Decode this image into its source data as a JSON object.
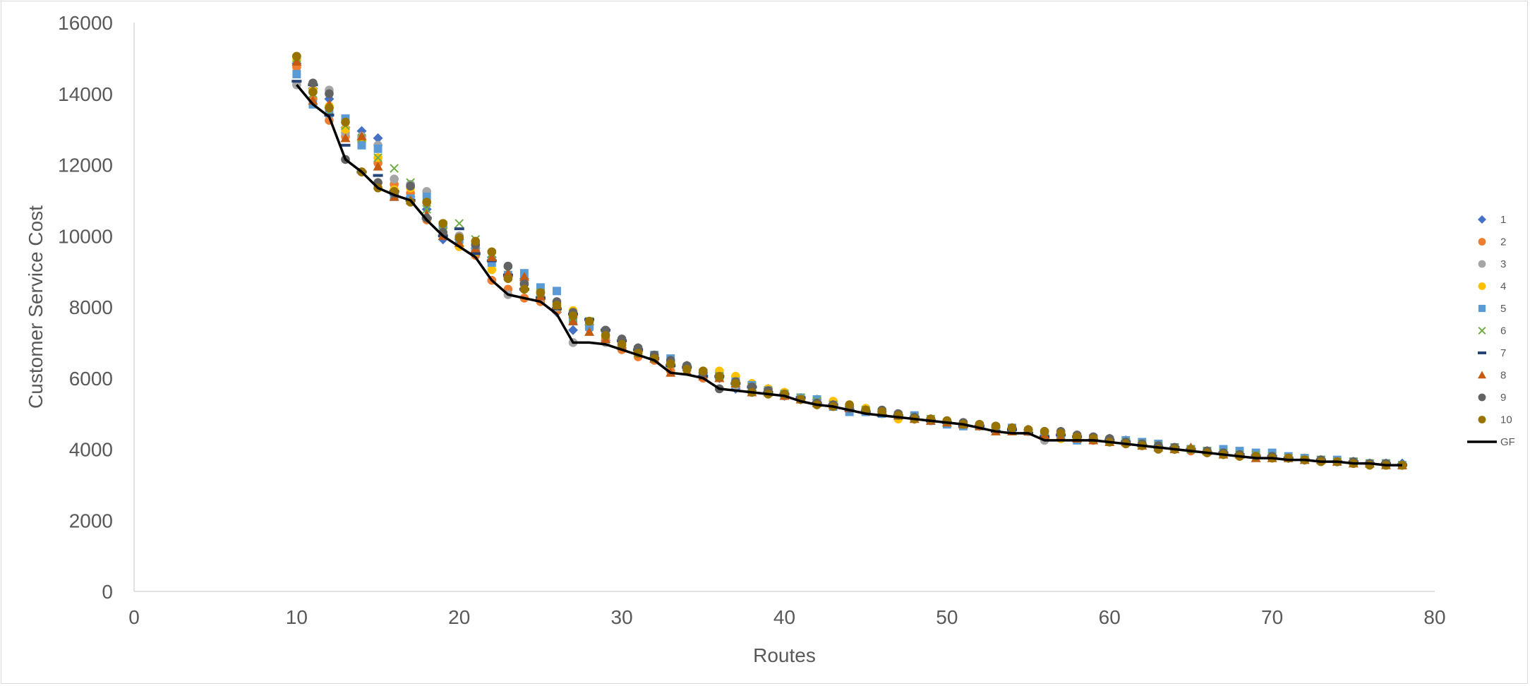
{
  "chart_data": {
    "type": "scatter",
    "title": "",
    "xlabel": "Routes",
    "ylabel": "Customer Service Cost",
    "xlim": [
      0,
      80
    ],
    "ylim": [
      0,
      16000
    ],
    "x_ticks": [
      0,
      10,
      20,
      30,
      40,
      50,
      60,
      70,
      80
    ],
    "y_ticks": [
      0,
      2000,
      4000,
      6000,
      8000,
      10000,
      12000,
      14000,
      16000
    ],
    "grid": false,
    "legend_position": "right",
    "x": [
      10,
      11,
      12,
      13,
      14,
      15,
      16,
      17,
      18,
      19,
      20,
      21,
      22,
      23,
      24,
      25,
      26,
      27,
      28,
      29,
      30,
      31,
      32,
      33,
      34,
      35,
      36,
      37,
      38,
      39,
      40,
      41,
      42,
      43,
      44,
      45,
      46,
      47,
      48,
      49,
      50,
      51,
      52,
      53,
      54,
      55,
      56,
      57,
      58,
      59,
      60,
      61,
      62,
      63,
      64,
      65,
      66,
      67,
      68,
      69,
      70,
      71,
      72,
      73,
      74,
      75,
      76,
      77,
      78
    ],
    "series": [
      {
        "name": "1",
        "marker": "diamond",
        "color": "#4472C4",
        "values": [
          14850,
          14150,
          13850,
          13050,
          12950,
          12750,
          11150,
          11100,
          10750,
          9900,
          9900,
          9650,
          9400,
          8850,
          8800,
          8300,
          7850,
          7350,
          7500,
          7050,
          6850,
          6750,
          6600,
          6400,
          6350,
          6150,
          6000,
          5700,
          5650,
          5700,
          5500,
          5400,
          5400,
          5250,
          5200,
          5100,
          5050,
          4950,
          4850,
          4850,
          4750,
          4700,
          4650,
          4600,
          4600,
          4550,
          4400,
          4400,
          4350,
          4300,
          4300,
          4250,
          4150,
          4100,
          4000,
          4000,
          3950,
          3900,
          3850,
          3850,
          3800,
          3750,
          3700,
          3700,
          3650,
          3650,
          3600,
          3600,
          3600
        ]
      },
      {
        "name": "2",
        "marker": "circle",
        "color": "#ED7D31",
        "values": [
          14750,
          13850,
          13250,
          12800,
          12700,
          12050,
          11450,
          11200,
          10450,
          10050,
          9700,
          9450,
          8750,
          8500,
          8250,
          8150,
          7900,
          7700,
          7500,
          7100,
          6800,
          6600,
          6500,
          6200,
          6300,
          6000,
          6100,
          5850,
          5800,
          5700,
          5600,
          5450,
          5350,
          5250,
          5150,
          5100,
          5050,
          4900,
          4850,
          4800,
          4750,
          4700,
          4650,
          4600,
          4550,
          4500,
          4400,
          4300,
          4300,
          4250,
          4250,
          4200,
          4100,
          4050,
          4000,
          3950,
          3900,
          3850,
          3800,
          3800,
          3750,
          3750,
          3750,
          3700,
          3650,
          3600,
          3600,
          3550,
          3550
        ]
      },
      {
        "name": "3",
        "marker": "circle",
        "color": "#A5A5A5",
        "values": [
          14250,
          14050,
          14100,
          12900,
          12800,
          12550,
          11600,
          11450,
          11250,
          10250,
          10000,
          9600,
          9300,
          8350,
          8700,
          8250,
          8000,
          7000,
          7400,
          7000,
          7000,
          6750,
          6550,
          6450,
          6300,
          6100,
          5700,
          5800,
          5750,
          5650,
          5500,
          5400,
          5400,
          5300,
          5200,
          5100,
          5000,
          4950,
          4900,
          4850,
          4800,
          4750,
          4700,
          4650,
          4550,
          4500,
          4250,
          4400,
          4300,
          4300,
          4250,
          4200,
          4150,
          4100,
          4050,
          4000,
          3950,
          3900,
          3850,
          3800,
          3800,
          3750,
          3700,
          3700,
          3650,
          3600,
          3600,
          3550,
          3550
        ]
      },
      {
        "name": "4",
        "marker": "circle",
        "color": "#FFC000",
        "values": [
          14950,
          14100,
          13650,
          13000,
          12650,
          12200,
          11300,
          11350,
          10950,
          10350,
          9700,
          9550,
          9050,
          8900,
          8650,
          8450,
          8100,
          7900,
          7600,
          7200,
          6900,
          6750,
          6600,
          6450,
          6350,
          6200,
          6200,
          6050,
          5850,
          5700,
          5600,
          5450,
          5400,
          5350,
          5250,
          5150,
          5000,
          4850,
          4850,
          4850,
          4750,
          4700,
          4650,
          4600,
          4550,
          4550,
          4400,
          4300,
          4300,
          4300,
          4250,
          4200,
          4150,
          4100,
          4050,
          4000,
          3950,
          3900,
          3850,
          3850,
          3800,
          3750,
          3750,
          3700,
          3650,
          3600,
          3600,
          3550,
          3550
        ]
      },
      {
        "name": "5",
        "marker": "square",
        "color": "#5B9BD5",
        "values": [
          14550,
          13700,
          13450,
          13300,
          12550,
          12450,
          11100,
          11050,
          11100,
          10300,
          9900,
          9700,
          9250,
          8900,
          8950,
          8550,
          8450,
          7600,
          7450,
          7300,
          7000,
          6800,
          6650,
          6550,
          6300,
          6150,
          6050,
          5900,
          5800,
          5650,
          5550,
          5450,
          5400,
          5200,
          5050,
          5050,
          5000,
          4950,
          4950,
          4800,
          4700,
          4650,
          4650,
          4600,
          4600,
          4500,
          4400,
          4350,
          4250,
          4300,
          4250,
          4250,
          4200,
          4150,
          4050,
          4000,
          3950,
          4000,
          3950,
          3900,
          3900,
          3800,
          3750,
          3700,
          3700,
          3650,
          3600,
          3600,
          3550
        ]
      },
      {
        "name": "6",
        "marker": "x",
        "color": "#70AD47",
        "values": [
          15000,
          14000,
          13500,
          13100,
          12750,
          12200,
          11900,
          11500,
          10750,
          10300,
          10350,
          9900,
          9500,
          9000,
          8700,
          8400,
          8000,
          7700,
          7600,
          7250,
          6950,
          6700,
          6550,
          6400,
          6300,
          6150,
          6050,
          5850,
          5750,
          5650,
          5550,
          5450,
          5350,
          5250,
          5150,
          5100,
          5050,
          4950,
          4900,
          4850,
          4750,
          4700,
          4650,
          4600,
          4550,
          4500,
          4450,
          4400,
          4350,
          4300,
          4250,
          4200,
          4150,
          4100,
          4050,
          4000,
          3950,
          3900,
          3850,
          3850,
          3800,
          3750,
          3700,
          3700,
          3650,
          3650,
          3600,
          3600,
          3550
        ]
      },
      {
        "name": "7",
        "marker": "dash",
        "color": "#264478",
        "values": [
          14350,
          14250,
          13400,
          12550,
          11800,
          11700,
          11250,
          11000,
          10500,
          10000,
          10200,
          9500,
          9300,
          8900,
          8500,
          8250,
          7950,
          7800,
          7650,
          7350,
          7050,
          6800,
          6550,
          6350,
          6300,
          6050,
          6050,
          5850,
          5750,
          5600,
          5550,
          5450,
          5300,
          5250,
          5100,
          5050,
          4950,
          4950,
          4900,
          4800,
          4750,
          4650,
          4650,
          4500,
          4550,
          4450,
          4350,
          4400,
          4350,
          4250,
          4250,
          4200,
          4100,
          4050,
          4050,
          4000,
          3900,
          3900,
          3850,
          3800,
          3800,
          3750,
          3700,
          3700,
          3650,
          3650,
          3600,
          3600,
          3550
        ]
      },
      {
        "name": "8",
        "marker": "triangle",
        "color": "#C55A11",
        "values": [
          14900,
          13800,
          13700,
          12750,
          12800,
          11950,
          11100,
          11000,
          10600,
          10000,
          9800,
          9650,
          9400,
          8950,
          8850,
          8300,
          8050,
          7600,
          7300,
          7100,
          6900,
          6850,
          6550,
          6150,
          6200,
          6050,
          6000,
          5850,
          5600,
          5600,
          5500,
          5400,
          5300,
          5250,
          5150,
          5100,
          5050,
          4950,
          4850,
          4800,
          4750,
          4700,
          4650,
          4500,
          4500,
          4500,
          4400,
          4350,
          4300,
          4250,
          4200,
          4200,
          4100,
          4050,
          4000,
          4050,
          3950,
          3850,
          3850,
          3750,
          3750,
          3750,
          3700,
          3700,
          3650,
          3600,
          3600,
          3550,
          3550
        ]
      },
      {
        "name": "9",
        "marker": "circle",
        "color": "#636363",
        "values": [
          15050,
          14300,
          14000,
          12150,
          11800,
          11500,
          11200,
          11400,
          10500,
          10100,
          9950,
          9750,
          9550,
          9150,
          8650,
          8400,
          8150,
          7850,
          7600,
          7350,
          7100,
          6850,
          6650,
          6500,
          6350,
          6150,
          5700,
          5900,
          5750,
          5650,
          5550,
          5400,
          5300,
          5250,
          5150,
          5100,
          5100,
          5000,
          4900,
          4850,
          4800,
          4750,
          4700,
          4650,
          4600,
          4550,
          4500,
          4500,
          4400,
          4350,
          4300,
          4200,
          4150,
          4100,
          4050,
          4000,
          3950,
          3900,
          3850,
          3800,
          3800,
          3750,
          3700,
          3700,
          3650,
          3650,
          3600,
          3600,
          3550
        ]
      },
      {
        "name": "10",
        "marker": "circle",
        "color": "#997300",
        "values": [
          15050,
          14050,
          13600,
          13200,
          11800,
          11350,
          11250,
          10950,
          10950,
          10350,
          9950,
          9850,
          9550,
          8800,
          8500,
          8400,
          8050,
          7750,
          7600,
          7200,
          6950,
          6700,
          6550,
          6400,
          6250,
          6200,
          6050,
          5850,
          5600,
          5550,
          5550,
          5400,
          5250,
          5200,
          5250,
          5100,
          5050,
          4950,
          4850,
          4850,
          4800,
          4700,
          4700,
          4650,
          4600,
          4550,
          4500,
          4450,
          4350,
          4300,
          4200,
          4150,
          4100,
          4000,
          4000,
          4000,
          3900,
          3850,
          3800,
          3800,
          3750,
          3750,
          3700,
          3650,
          3650,
          3600,
          3550,
          3550,
          3550
        ]
      },
      {
        "name": "GF",
        "type": "line",
        "color": "#000000",
        "values": [
          14250,
          13700,
          13350,
          12150,
          11800,
          11350,
          11150,
          11000,
          10450,
          10000,
          9700,
          9400,
          8750,
          8350,
          8250,
          8150,
          7800,
          7000,
          7000,
          6950,
          6800,
          6650,
          6500,
          6150,
          6100,
          6000,
          5700,
          5650,
          5600,
          5550,
          5500,
          5350,
          5250,
          5200,
          5100,
          5000,
          4950,
          4900,
          4850,
          4800,
          4750,
          4700,
          4600,
          4500,
          4450,
          4450,
          4250,
          4250,
          4250,
          4250,
          4200,
          4150,
          4100,
          4050,
          4000,
          3950,
          3900,
          3850,
          3800,
          3750,
          3750,
          3700,
          3700,
          3650,
          3650,
          3600,
          3600,
          3550,
          3550
        ]
      }
    ]
  }
}
